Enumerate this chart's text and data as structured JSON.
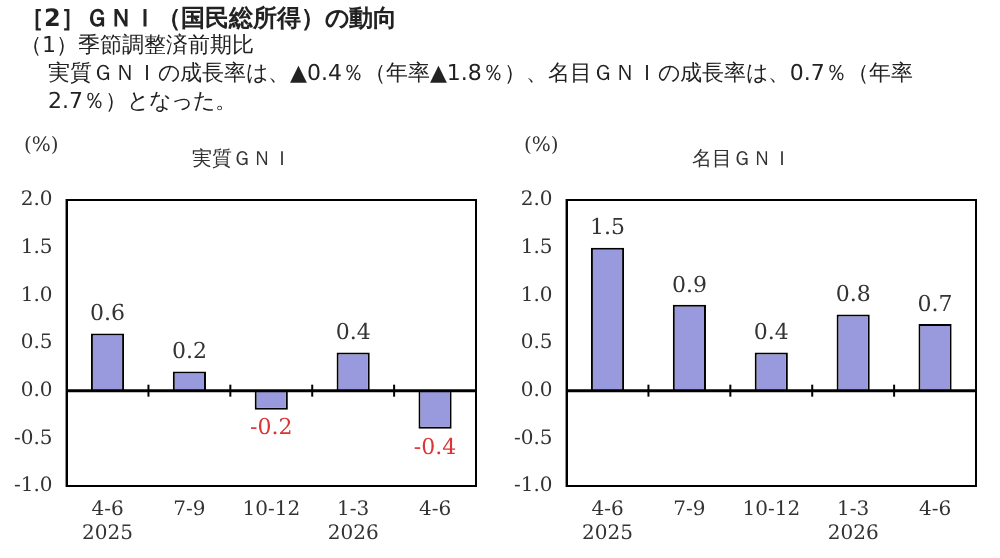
{
  "chart_data": [
    {
      "type": "bar",
      "title": "実質ＧＮＩ",
      "ylabel": "(%)",
      "annotations": [
        "［2］ＧＮＩ（国民総所得）の動向",
        "（1）季節調整済前期比",
        "実質ＧＮＩの成長率は、▲0.4％（年率▲1.8％）、名目ＧＮＩの成長率は、0.7％（年率2.7％）となった。"
      ],
      "categories": [
        "4-6\n2025",
        "7-9",
        "10-12",
        "1-3\n2026",
        "4-6"
      ],
      "values": [
        0.6,
        0.2,
        -0.2,
        0.4,
        -0.4
      ],
      "color": "#9999dd",
      "ylim": [
        -1,
        2
      ],
      "yticks": [
        {
          "value": -1,
          "label": "-1.0"
        },
        {
          "value": -0.5,
          "label": "-0.5"
        },
        {
          "value": 0,
          "label": "0.0"
        },
        {
          "value": 0.5,
          "label": "0.5"
        },
        {
          "value": 1,
          "label": "1.0"
        },
        {
          "value": 1.5,
          "label": "1.5"
        },
        {
          "value": 2,
          "label": "2.0"
        }
      ],
      "data_labels": true
    },
    {
      "type": "bar",
      "title": "名目ＧＮＩ",
      "ylabel": "(%)",
      "categories": [
        "4-6\n2025",
        "7-9",
        "10-12",
        "1-3\n2026",
        "4-6"
      ],
      "values": [
        1.5,
        0.9,
        0.4,
        0.8,
        0.7
      ],
      "color": "#9999dd",
      "ylim": [
        -1,
        2
      ],
      "yticks": [
        {
          "value": -1,
          "label": "-1.0"
        },
        {
          "value": -0.5,
          "label": "-0.5"
        },
        {
          "value": 0,
          "label": "0.0"
        },
        {
          "value": 0.5,
          "label": "0.5"
        },
        {
          "value": 1,
          "label": "1.0"
        },
        {
          "value": 1.5,
          "label": "1.5"
        },
        {
          "value": 2,
          "label": "2.0"
        }
      ],
      "data_labels": true
    }
  ]
}
